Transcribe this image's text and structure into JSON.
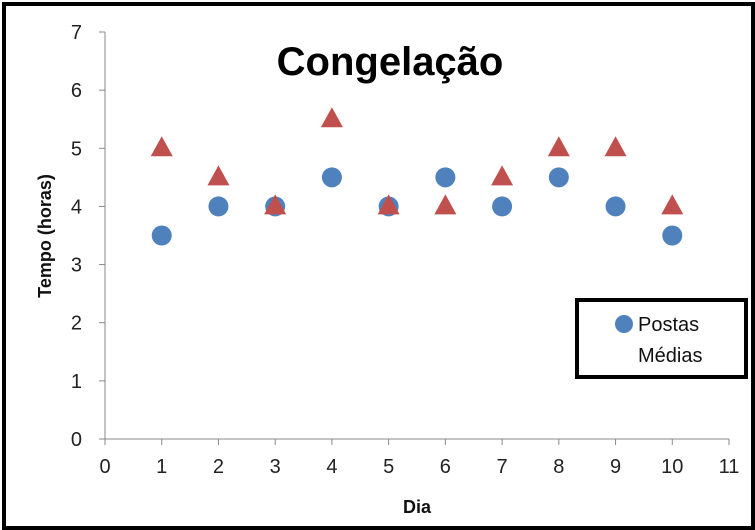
{
  "chart_data": {
    "type": "scatter",
    "title": "Congelação",
    "xlabel": "Dia",
    "ylabel": "Tempo (horas)",
    "xlim": [
      0,
      11
    ],
    "ylim": [
      0,
      7
    ],
    "x_ticks": [
      "0",
      "1",
      "2",
      "3",
      "4",
      "5",
      "6",
      "7",
      "8",
      "9",
      "10",
      "11"
    ],
    "y_ticks": [
      "0",
      "1",
      "2",
      "3",
      "4",
      "5",
      "6",
      "7"
    ],
    "grid": false,
    "legend_position": "right",
    "series": [
      {
        "name": "Postas",
        "marker": "circle",
        "color": "#4F81BD",
        "x": [
          1,
          2,
          3,
          4,
          5,
          6,
          7,
          8,
          9,
          10
        ],
        "y": [
          3.5,
          4,
          4,
          4.5,
          4,
          4.5,
          4,
          4.5,
          4,
          3.5
        ]
      },
      {
        "name": "Médias",
        "marker": "triangle",
        "color": "#C0504D",
        "x": [
          1,
          2,
          3,
          4,
          5,
          6,
          7,
          8,
          9,
          10
        ],
        "y": [
          5,
          4.5,
          4,
          5.5,
          4,
          4,
          4.5,
          5,
          5,
          4
        ]
      }
    ]
  }
}
